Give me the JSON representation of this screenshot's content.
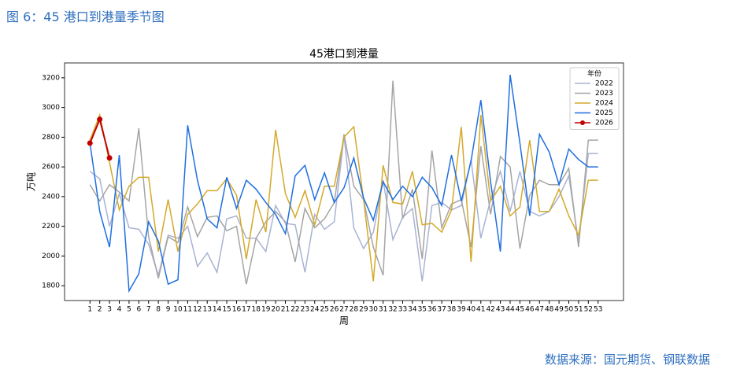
{
  "header": {
    "title": "图 6：45 港口到港量季节图"
  },
  "footer": {
    "source": "数据来源：国元期货、钢联数据"
  },
  "chart_data": {
    "type": "line",
    "title": "45港口到港量",
    "x_label": "周",
    "y_label": "万吨",
    "x": [
      1,
      2,
      3,
      4,
      5,
      6,
      7,
      8,
      9,
      10,
      11,
      12,
      13,
      14,
      15,
      16,
      17,
      18,
      19,
      20,
      21,
      22,
      23,
      24,
      25,
      26,
      27,
      28,
      29,
      30,
      31,
      32,
      33,
      34,
      35,
      36,
      37,
      38,
      39,
      40,
      41,
      42,
      43,
      44,
      45,
      46,
      47,
      48,
      49,
      50,
      51,
      52,
      53
    ],
    "xlim": [
      -1.6,
      55.6
    ],
    "xticks": [
      1,
      2,
      3,
      4,
      5,
      6,
      7,
      8,
      9,
      10,
      11,
      12,
      13,
      14,
      15,
      16,
      17,
      18,
      19,
      20,
      21,
      22,
      23,
      24,
      25,
      26,
      27,
      28,
      29,
      30,
      31,
      32,
      33,
      34,
      35,
      36,
      37,
      38,
      39,
      40,
      41,
      42,
      43,
      44,
      45,
      46,
      47,
      48,
      49,
      50,
      51,
      52,
      53
    ],
    "ylim": [
      1700,
      3300
    ],
    "yticks": [
      1800,
      2000,
      2200,
      2400,
      2600,
      2800,
      3000,
      3200
    ],
    "legend_title": "年份",
    "legend": "upper right",
    "series": [
      {
        "name": "2022",
        "color": "#a9b3d3",
        "values": [
          2570,
          2520,
          2200,
          2420,
          2190,
          2180,
          2080,
          1870,
          2140,
          2120,
          2200,
          1930,
          2020,
          1890,
          2250,
          2270,
          2120,
          2120,
          2030,
          2340,
          2220,
          2210,
          1890,
          2280,
          2180,
          2230,
          2810,
          2190,
          2050,
          2160,
          2510,
          2110,
          2260,
          2320,
          1830,
          2340,
          2360,
          2310,
          2340,
          2650,
          2120,
          2380,
          2570,
          2300,
          2570,
          2300,
          2270,
          2300,
          2400,
          2540,
          2090,
          2690,
          2690
        ]
      },
      {
        "name": "2023",
        "color": "#a5a5a5",
        "values": [
          2480,
          2370,
          2480,
          2430,
          2370,
          2860,
          2130,
          1850,
          2130,
          2090,
          2330,
          2130,
          2260,
          2270,
          2170,
          2200,
          1810,
          2120,
          2230,
          2300,
          2230,
          1960,
          2320,
          2190,
          2250,
          2360,
          2820,
          2470,
          2380,
          2060,
          1870,
          3180,
          2250,
          2450,
          1980,
          2710,
          2190,
          2350,
          2380,
          2060,
          2740,
          2280,
          2670,
          2600,
          2050,
          2410,
          2510,
          2480,
          2480,
          2590,
          2060,
          2780,
          2780
        ]
      },
      {
        "name": "2024",
        "color": "#d4a92a",
        "values": [
          2780,
          2950,
          2630,
          2310,
          2470,
          2530,
          2530,
          2030,
          2380,
          2030,
          2280,
          2350,
          2440,
          2440,
          2520,
          2410,
          1980,
          2380,
          2160,
          2850,
          2420,
          2260,
          2440,
          2210,
          2470,
          2470,
          2800,
          2870,
          2380,
          1830,
          2610,
          2360,
          2350,
          2570,
          2210,
          2220,
          2160,
          2310,
          2870,
          1960,
          2950,
          2370,
          2470,
          2270,
          2330,
          2780,
          2300,
          2300,
          2450,
          2270,
          2140,
          2510,
          2510
        ]
      },
      {
        "name": "2025",
        "color": "#1f6fe0",
        "values": [
          2760,
          2300,
          2060,
          2680,
          1765,
          1880,
          2230,
          2100,
          1810,
          1840,
          2880,
          2510,
          2250,
          2190,
          2530,
          2320,
          2510,
          2450,
          2360,
          2280,
          2150,
          2540,
          2610,
          2380,
          2560,
          2360,
          2460,
          2660,
          2390,
          2240,
          2500,
          2380,
          2470,
          2400,
          2530,
          2460,
          2340,
          2680,
          2370,
          2640,
          3050,
          2500,
          2030,
          3220,
          2760,
          2270,
          2820,
          2700,
          2480,
          2720,
          2650,
          2600,
          2600
        ]
      },
      {
        "name": "2026",
        "color": "#c00000",
        "marker": true,
        "values": [
          2760,
          2920,
          2660,
          null,
          null,
          null,
          null,
          null,
          null,
          null,
          null,
          null,
          null,
          null,
          null,
          null,
          null,
          null,
          null,
          null,
          null,
          null,
          null,
          null,
          null,
          null,
          null,
          null,
          null,
          null,
          null,
          null,
          null,
          null,
          null,
          null,
          null,
          null,
          null,
          null,
          null,
          null,
          null,
          null,
          null,
          null,
          null,
          null,
          null,
          null,
          null,
          null,
          null
        ]
      }
    ]
  }
}
